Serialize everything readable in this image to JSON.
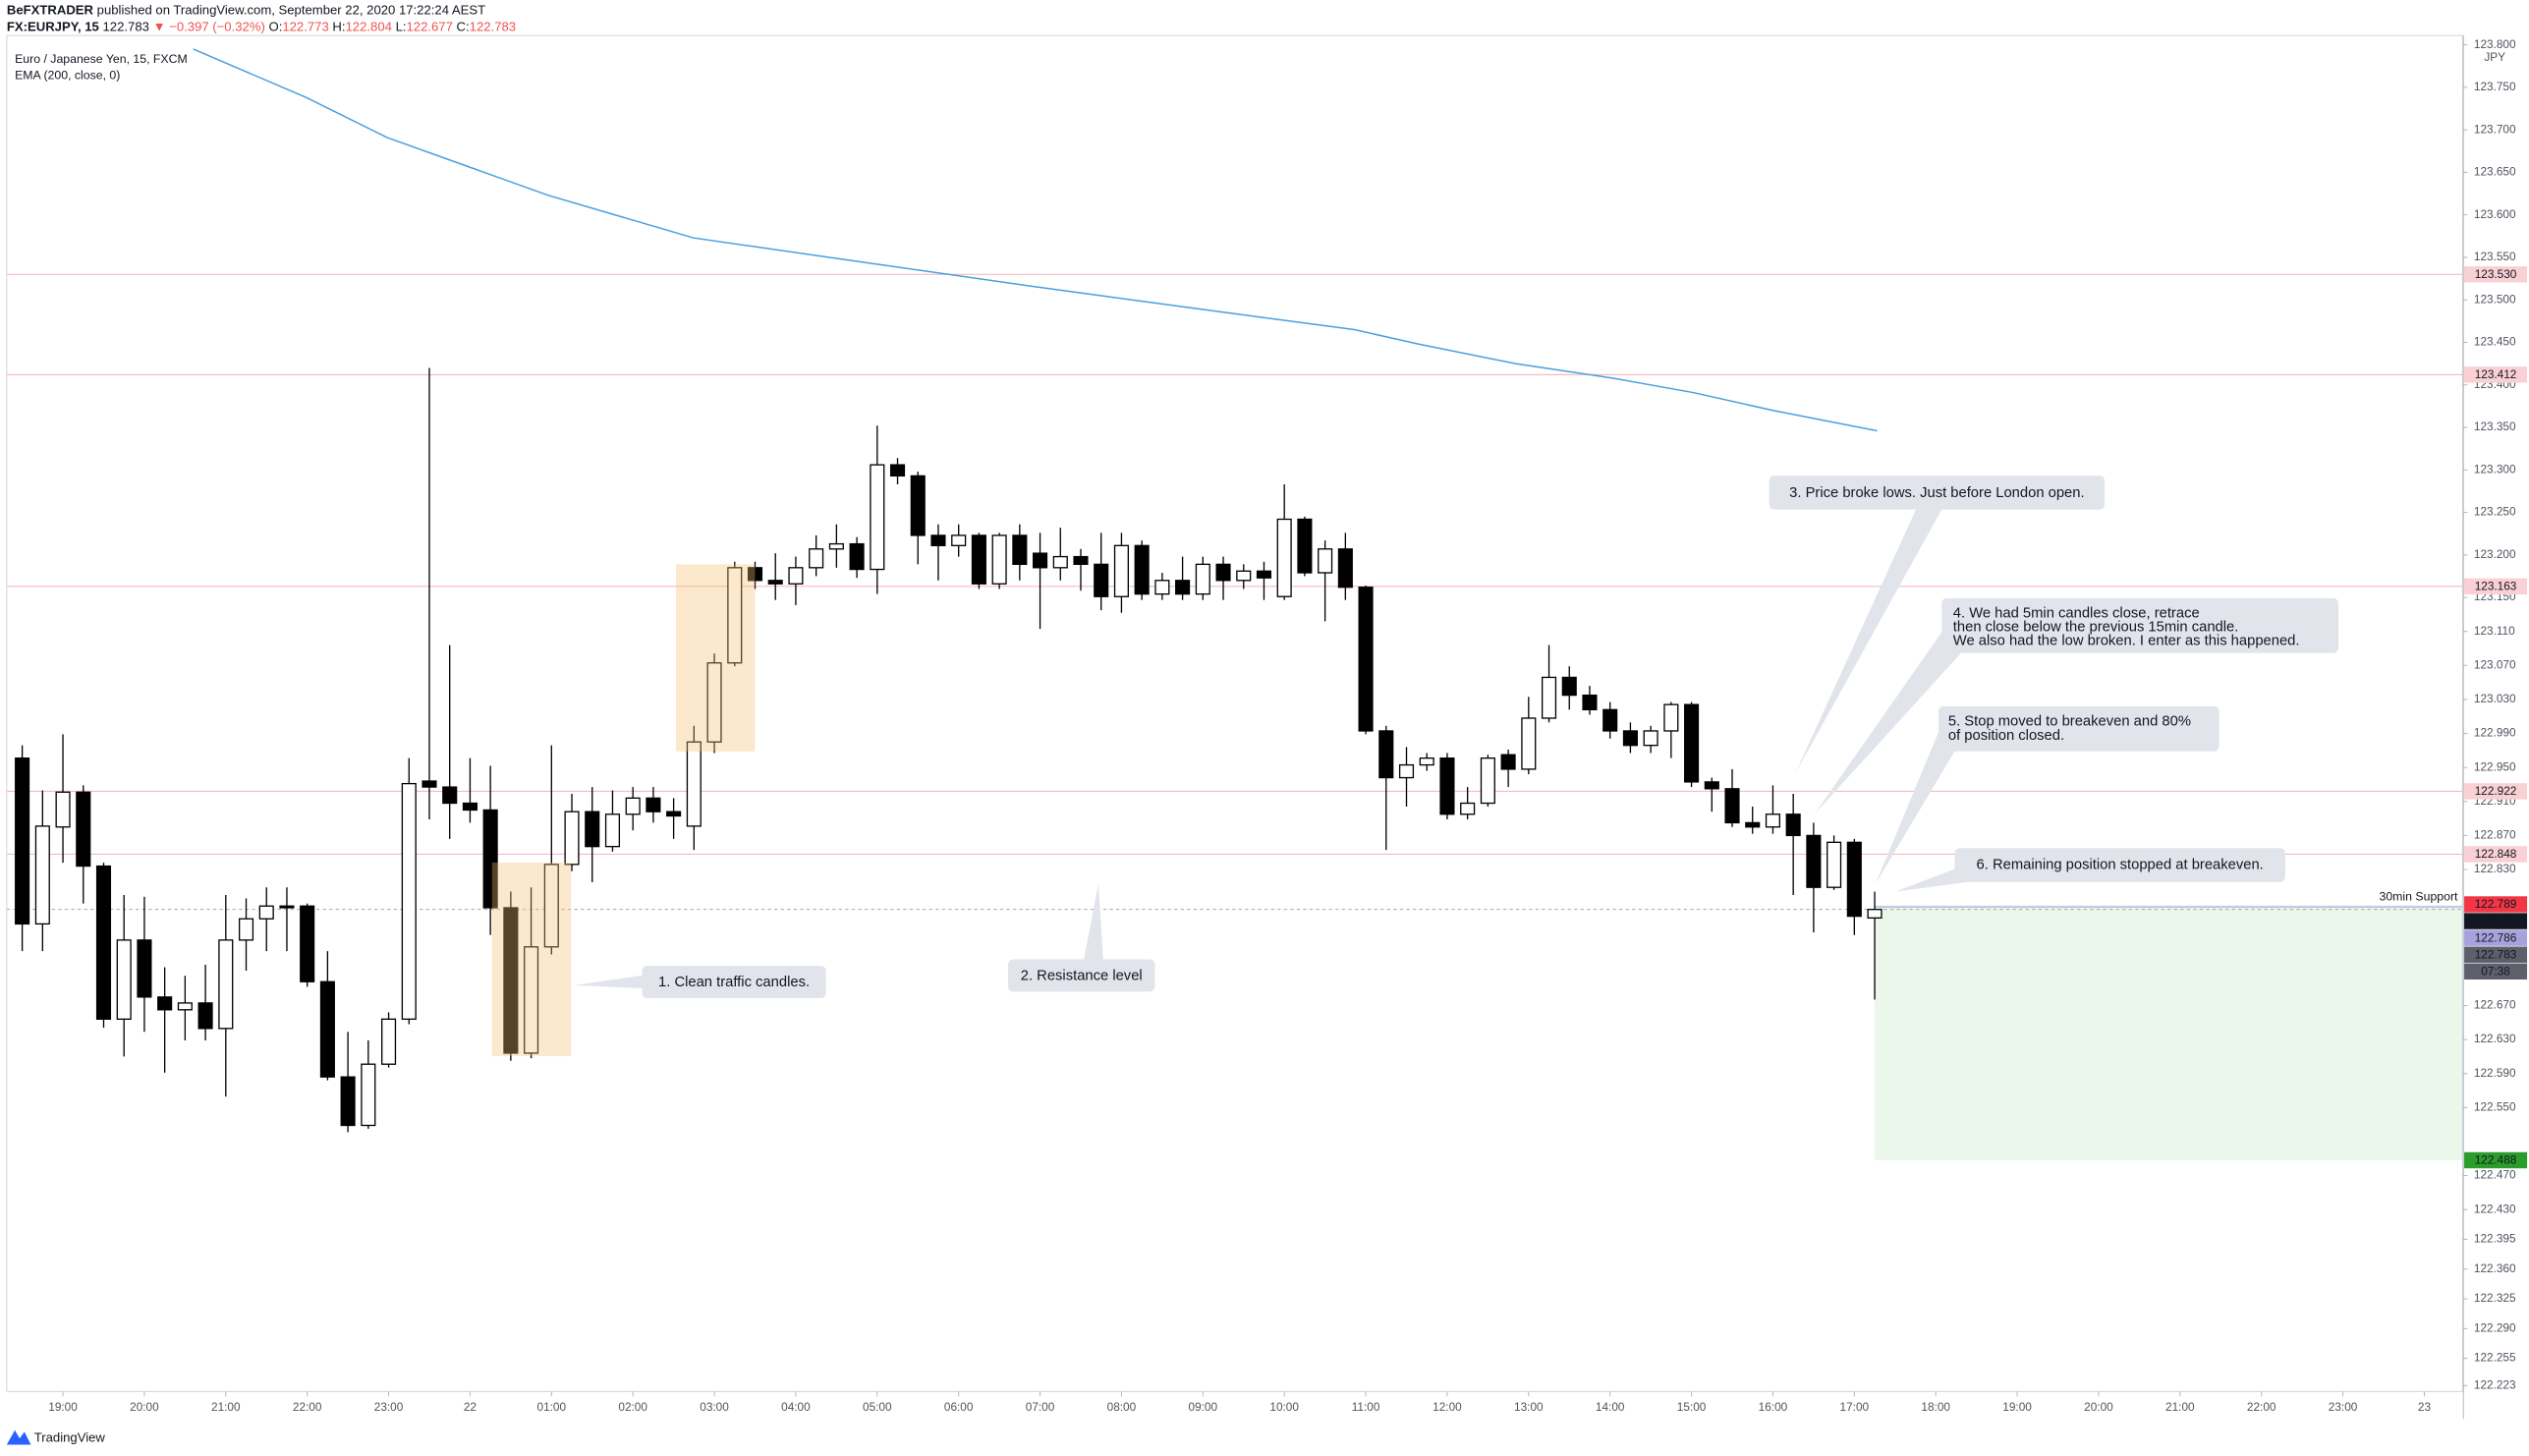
{
  "header": {
    "author": "BeFXTRADER",
    "published": "published on TradingView.com, September 22, 2020 17:22:24 AEST",
    "symbol": "FX:EURJPY, 15",
    "last": 122.783,
    "change": "▼ −0.397 (−0.32%)",
    "ohlc_labels": [
      "O:",
      "H:",
      "L:",
      "C:"
    ],
    "ohlc_values": [
      122.773,
      122.804,
      122.677,
      122.783
    ]
  },
  "chart_data": {
    "type": "candlestick",
    "title": "Euro / Japanese Yen, 15, FXCM",
    "indicator": "EMA (200, close, 0)",
    "currency": "JPY",
    "x": [
      -0.5,
      -0.25,
      0,
      0.25,
      0.5,
      0.75,
      1,
      1.25,
      1.5,
      1.75,
      2,
      2.25,
      2.5,
      2.75,
      3,
      3.25,
      3.5,
      3.75,
      4,
      4.25,
      4.5,
      4.75,
      5,
      5.25,
      5.5,
      5.75,
      6,
      6.25,
      6.5,
      6.75,
      7,
      7.25,
      7.5,
      7.75,
      8,
      8.25,
      8.5,
      8.75,
      9,
      9.25,
      9.5,
      9.75,
      10,
      10.25,
      10.5,
      10.75,
      11,
      11.25,
      11.5,
      11.75,
      12,
      12.25,
      12.5,
      12.75,
      13,
      13.25,
      13.5,
      13.75,
      14,
      14.25,
      14.5,
      14.75,
      15,
      15.25,
      15.5,
      15.75,
      16,
      16.25,
      16.5,
      16.75,
      17,
      17.25,
      17.5,
      17.75,
      18,
      18.25,
      18.5,
      18.75,
      19,
      19.25,
      19.5,
      19.75,
      20,
      20.25,
      20.5,
      20.75,
      21,
      21.25,
      21.5,
      21.75,
      22,
      22.25
    ],
    "open": [
      122.961,
      122.766,
      122.88,
      122.921,
      122.834,
      122.654,
      122.747,
      122.68,
      122.665,
      122.673,
      122.643,
      122.747,
      122.772,
      122.787,
      122.787,
      122.698,
      122.586,
      122.529,
      122.601,
      122.654,
      122.934,
      122.927,
      122.908,
      122.9,
      122.785,
      122.614,
      122.739,
      122.836,
      122.898,
      122.857,
      122.895,
      122.914,
      122.898,
      122.881,
      122.98,
      123.073,
      123.185,
      123.17,
      123.166,
      123.185,
      123.207,
      123.213,
      123.183,
      123.306,
      123.293,
      123.223,
      123.211,
      123.223,
      123.166,
      123.223,
      123.202,
      123.185,
      123.198,
      123.189,
      123.151,
      123.211,
      123.154,
      123.17,
      123.154,
      123.189,
      123.17,
      123.181,
      123.151,
      123.242,
      123.179,
      123.207,
      123.162,
      122.993,
      122.938,
      122.953,
      122.961,
      122.895,
      122.908,
      122.965,
      122.948,
      123.008,
      123.056,
      123.035,
      123.018,
      122.993,
      122.976,
      122.993,
      123.024,
      122.933,
      122.925,
      122.885,
      122.88,
      122.895,
      122.87,
      122.809,
      122.862,
      122.773
    ],
    "high": [
      122.976,
      122.923,
      122.989,
      122.929,
      122.838,
      122.8,
      122.798,
      122.715,
      122.705,
      122.718,
      122.8,
      122.796,
      122.809,
      122.809,
      122.79,
      122.734,
      122.639,
      122.629,
      122.662,
      122.961,
      123.42,
      123.094,
      122.961,
      122.952,
      122.804,
      122.809,
      122.976,
      122.919,
      122.927,
      122.923,
      122.927,
      122.927,
      122.914,
      122.999,
      123.084,
      123.192,
      123.192,
      123.202,
      123.198,
      123.223,
      123.236,
      123.221,
      123.352,
      123.314,
      123.298,
      123.236,
      123.236,
      123.226,
      123.226,
      123.236,
      123.226,
      123.232,
      123.207,
      123.226,
      123.226,
      123.217,
      123.179,
      123.198,
      123.198,
      123.198,
      123.189,
      123.192,
      123.283,
      123.245,
      123.217,
      123.226,
      123.164,
      122.999,
      122.974,
      122.967,
      122.967,
      122.927,
      122.965,
      122.971,
      123.033,
      123.094,
      123.069,
      123.046,
      123.027,
      123.003,
      122.999,
      123.027,
      123.027,
      122.938,
      122.948,
      122.904,
      122.929,
      122.919,
      122.885,
      122.87,
      122.866,
      122.804
    ],
    "low": [
      122.734,
      122.734,
      122.838,
      122.79,
      122.644,
      122.61,
      122.639,
      122.591,
      122.629,
      122.629,
      122.563,
      122.711,
      122.734,
      122.734,
      122.692,
      122.582,
      122.521,
      122.525,
      122.597,
      122.648,
      122.889,
      122.866,
      122.885,
      122.753,
      122.605,
      122.608,
      122.73,
      122.828,
      122.815,
      122.851,
      122.876,
      122.885,
      122.866,
      122.853,
      122.967,
      123.069,
      123.16,
      123.147,
      123.141,
      123.175,
      123.185,
      123.173,
      123.154,
      123.283,
      123.189,
      123.17,
      123.198,
      123.16,
      123.16,
      123.17,
      123.113,
      123.17,
      123.158,
      123.135,
      123.132,
      123.147,
      123.147,
      123.147,
      123.147,
      123.147,
      123.16,
      123.147,
      123.147,
      123.175,
      123.122,
      123.147,
      122.989,
      122.853,
      122.904,
      122.946,
      122.889,
      122.889,
      122.904,
      122.927,
      122.942,
      123.003,
      123.018,
      123.012,
      122.984,
      122.967,
      122.967,
      122.961,
      122.927,
      122.898,
      122.88,
      122.872,
      122.872,
      122.8,
      122.756,
      122.806,
      122.753,
      122.677
    ],
    "close": [
      122.766,
      122.881,
      122.921,
      122.834,
      122.654,
      122.747,
      122.68,
      122.665,
      122.673,
      122.643,
      122.747,
      122.772,
      122.787,
      122.785,
      122.698,
      122.586,
      122.529,
      122.601,
      122.654,
      122.931,
      122.927,
      122.908,
      122.9,
      122.785,
      122.614,
      122.739,
      122.836,
      122.898,
      122.857,
      122.895,
      122.914,
      122.898,
      122.893,
      122.98,
      123.073,
      123.185,
      123.17,
      123.166,
      123.185,
      123.207,
      123.213,
      123.183,
      123.306,
      123.293,
      123.223,
      123.211,
      123.223,
      123.166,
      123.223,
      123.189,
      123.185,
      123.198,
      123.189,
      123.151,
      123.211,
      123.154,
      123.17,
      123.154,
      123.189,
      123.17,
      123.181,
      123.173,
      123.242,
      123.179,
      123.207,
      123.162,
      122.993,
      122.938,
      122.953,
      122.961,
      122.895,
      122.908,
      122.961,
      122.948,
      123.008,
      123.056,
      123.035,
      123.018,
      122.993,
      122.976,
      122.993,
      123.024,
      122.933,
      122.925,
      122.885,
      122.88,
      122.895,
      122.87,
      122.809,
      122.862,
      122.775,
      122.783
    ],
    "up_color": "#ffffff",
    "down_color": "#000000",
    "wick_color": "#000000",
    "xlim": [
      -0.69,
      29.47
    ],
    "xticks": [
      {
        "value": 0,
        "label": "19:00"
      },
      {
        "value": 1,
        "label": "20:00"
      },
      {
        "value": 2,
        "label": "21:00"
      },
      {
        "value": 3,
        "label": "22:00"
      },
      {
        "value": 4,
        "label": "23:00"
      },
      {
        "value": 5,
        "label": "22"
      },
      {
        "value": 6,
        "label": "01:00"
      },
      {
        "value": 7,
        "label": "02:00"
      },
      {
        "value": 8,
        "label": "03:00"
      },
      {
        "value": 9,
        "label": "04:00"
      },
      {
        "value": 10,
        "label": "05:00"
      },
      {
        "value": 11,
        "label": "06:00"
      },
      {
        "value": 12,
        "label": "07:00"
      },
      {
        "value": 13,
        "label": "08:00"
      },
      {
        "value": 14,
        "label": "09:00"
      },
      {
        "value": 15,
        "label": "10:00"
      },
      {
        "value": 16,
        "label": "11:00"
      },
      {
        "value": 17,
        "label": "12:00"
      },
      {
        "value": 18,
        "label": "13:00"
      },
      {
        "value": 19,
        "label": "14:00"
      },
      {
        "value": 20,
        "label": "15:00"
      },
      {
        "value": 21,
        "label": "16:00"
      },
      {
        "value": 22,
        "label": "17:00"
      },
      {
        "value": 23,
        "label": "18:00"
      },
      {
        "value": 24,
        "label": "19:00"
      },
      {
        "value": 25,
        "label": "20:00"
      },
      {
        "value": 26,
        "label": "21:00"
      },
      {
        "value": 27,
        "label": "22:00"
      },
      {
        "value": 28,
        "label": "23:00"
      },
      {
        "value": 29,
        "label": "23"
      }
    ],
    "ylim": [
      122.216,
      123.811
    ],
    "yticks": [
      {
        "value": 123.8,
        "label": "123.800"
      },
      {
        "value": 123.75,
        "label": "123.750"
      },
      {
        "value": 123.7,
        "label": "123.700"
      },
      {
        "value": 123.65,
        "label": "123.650"
      },
      {
        "value": 123.6,
        "label": "123.600"
      },
      {
        "value": 123.55,
        "label": "123.550"
      },
      {
        "value": 123.5,
        "label": "123.500"
      },
      {
        "value": 123.45,
        "label": "123.450"
      },
      {
        "value": 123.4,
        "label": "123.400"
      },
      {
        "value": 123.35,
        "label": "123.350"
      },
      {
        "value": 123.3,
        "label": "123.300"
      },
      {
        "value": 123.25,
        "label": "123.250"
      },
      {
        "value": 123.2,
        "label": "123.200"
      },
      {
        "value": 123.15,
        "label": "123.150"
      },
      {
        "value": 123.11,
        "label": "123.110"
      },
      {
        "value": 123.07,
        "label": "123.070"
      },
      {
        "value": 123.03,
        "label": "123.030"
      },
      {
        "value": 122.99,
        "label": "122.990"
      },
      {
        "value": 122.95,
        "label": "122.950"
      },
      {
        "value": 122.91,
        "label": "122.910"
      },
      {
        "value": 122.87,
        "label": "122.870"
      },
      {
        "value": 122.83,
        "label": "122.830"
      },
      {
        "value": 122.67,
        "label": "122.670"
      },
      {
        "value": 122.63,
        "label": "122.630"
      },
      {
        "value": 122.59,
        "label": "122.590"
      },
      {
        "value": 122.55,
        "label": "122.550"
      },
      {
        "value": 122.47,
        "label": "122.470"
      },
      {
        "value": 122.43,
        "label": "122.430"
      },
      122.395,
      {
        "value": 122.36,
        "label": "122.360"
      },
      122.325,
      {
        "value": 122.29,
        "label": "122.290"
      },
      122.255,
      122.223
    ],
    "grid": false,
    "ema": {
      "color": "#4a9fdc",
      "x": [
        1.6,
        2.99,
        3.98,
        4.97,
        5.96,
        7.74,
        9.92,
        11.9,
        13.9,
        15.86,
        16.65,
        17.84,
        19.03,
        20.02,
        21.0,
        22.28
      ],
      "y": [
        123.795,
        123.738,
        123.691,
        123.657,
        123.623,
        123.573,
        123.543,
        123.516,
        123.49,
        123.465,
        123.448,
        123.425,
        123.408,
        123.391,
        123.37,
        123.346
      ]
    },
    "levels": {
      "color": "#f6bcc0",
      "label_bg": "#f9d0d3",
      "label_fg": "#a0141e",
      "items": [
        {
          "value": 123.53,
          "label": "123.530"
        },
        {
          "value": 123.412
        },
        {
          "value": 123.163
        },
        {
          "value": 122.922
        },
        {
          "value": 122.848
        }
      ]
    },
    "last_price": {
      "bg": "#5d606b",
      "fg": "#ffffff",
      "line_color": "#9598a1",
      "countdown": "07:38"
    },
    "position": {
      "x": 22.25,
      "entry": 122.788,
      "stop": 122.789,
      "target": 122.488,
      "fill": "#ebf7eb",
      "entry_bg": "#131722",
      "stop_bg": "#f23645",
      "target_bg": "#2a9d2a",
      "fg": "#ffffff"
    },
    "support": {
      "label": "30min Support",
      "value": 122.786,
      "color": "#a9a1dc"
    }
  },
  "annotations": [
    {
      "lines": [
        "1. Clean traffic candles."
      ]
    },
    {
      "lines": [
        "2. Resistance level"
      ]
    },
    {
      "lines": [
        "3. Price broke lows. Just before London open."
      ]
    },
    {
      "lines": [
        "4. We had 5min candles close, retrace",
        "then close below the previous 15min candle.",
        "We also had the low broken. I enter as this happened."
      ]
    },
    {
      "lines": [
        "5. Stop moved to breakeven and 80%",
        "of position closed."
      ]
    },
    {
      "lines": [
        "6. Remaining position stopped at breakeven."
      ]
    }
  ],
  "logo": "TradingView"
}
